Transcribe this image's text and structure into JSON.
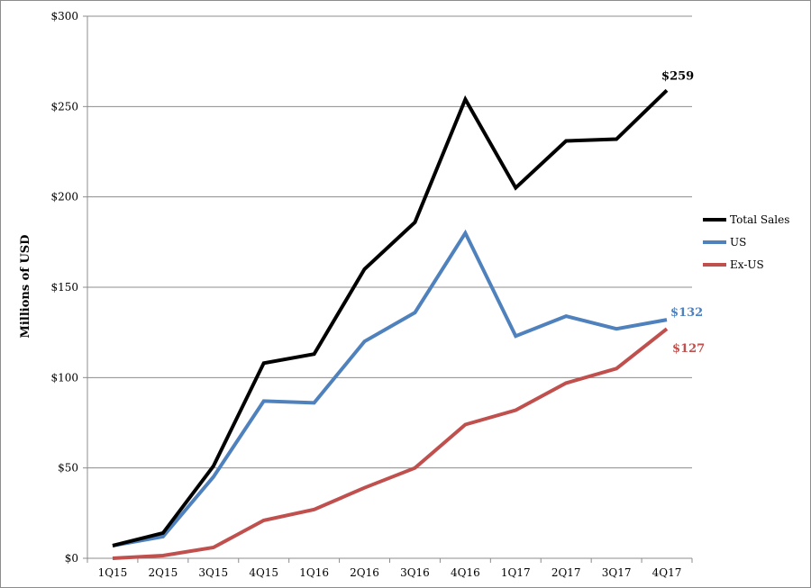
{
  "chart_data": {
    "type": "line",
    "ylabel": "Millions of USD",
    "xlabel": "",
    "title": "",
    "categories": [
      "1Q15",
      "2Q15",
      "3Q15",
      "4Q15",
      "1Q16",
      "2Q16",
      "3Q16",
      "4Q16",
      "1Q17",
      "2Q17",
      "3Q17",
      "4Q17"
    ],
    "ylim": [
      0,
      300
    ],
    "yticks": [
      0,
      50,
      100,
      150,
      200,
      250,
      300
    ],
    "ytick_labels": [
      "$0",
      "$50",
      "$100",
      "$150",
      "$200",
      "$250",
      "$300"
    ],
    "grid": true,
    "legend_position": "right",
    "series": [
      {
        "name": "Total Sales",
        "color": "#000000",
        "values": [
          7,
          14,
          51,
          108,
          113,
          160,
          186,
          254,
          205,
          231,
          232,
          259
        ],
        "end_label": "$259"
      },
      {
        "name": "US",
        "color": "#4f81bd",
        "values": [
          7,
          12,
          45,
          87,
          86,
          120,
          136,
          180,
          123,
          134,
          127,
          132
        ],
        "end_label": "$132"
      },
      {
        "name": "Ex-US",
        "color": "#c0504d",
        "values": [
          0,
          1.5,
          6,
          21,
          27,
          39,
          50,
          74,
          82,
          97,
          105,
          127
        ],
        "end_label": "$127"
      }
    ]
  }
}
